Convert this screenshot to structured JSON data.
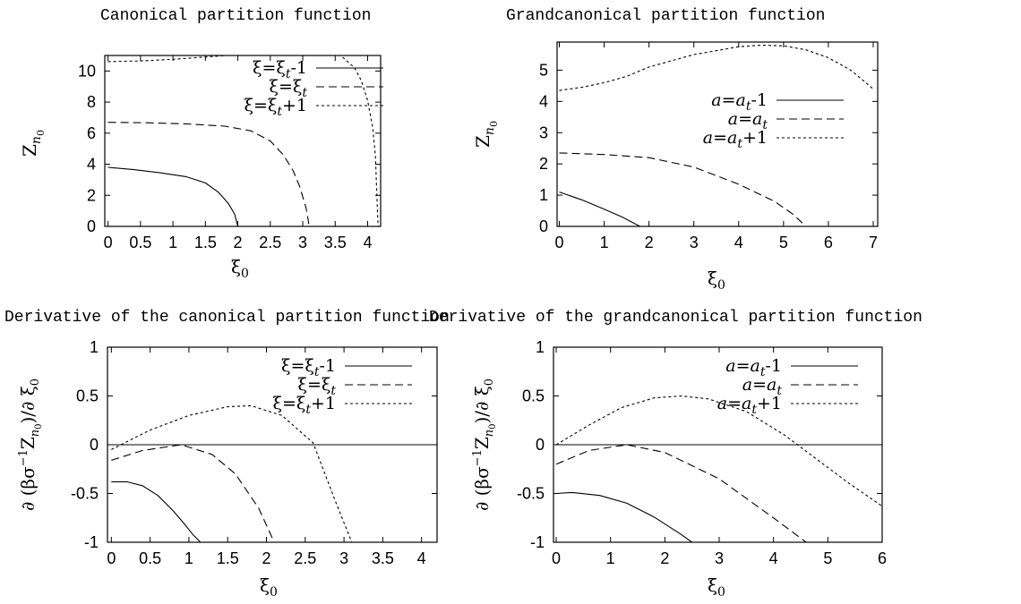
{
  "chart_data": [
    {
      "type": "line",
      "title": "Canonical partition function",
      "xlabel": "ξ0",
      "ylabel": "Zn0",
      "xlim": [
        -0.05,
        4.2
      ],
      "ylim": [
        0,
        11
      ],
      "xticks": [
        "0",
        "0.5",
        "1",
        "1.5",
        "2",
        "2.5",
        "3",
        "3.5",
        "4"
      ],
      "yticks": [
        "0",
        "2",
        "4",
        "6",
        "8",
        "10"
      ],
      "legend": "top-right",
      "series": [
        {
          "name": "ξ=ξt-1",
          "dash": "solid",
          "x": [
            0,
            0.4,
            0.8,
            1.2,
            1.5,
            1.7,
            1.85,
            1.95,
            2.0
          ],
          "y": [
            3.8,
            3.65,
            3.45,
            3.2,
            2.8,
            2.2,
            1.5,
            0.8,
            0
          ]
        },
        {
          "name": "ξ=ξt",
          "dash": "long",
          "x": [
            0,
            0.6,
            1.2,
            1.8,
            2.2,
            2.5,
            2.7,
            2.85,
            2.95,
            3.05,
            3.1
          ],
          "y": [
            6.7,
            6.67,
            6.6,
            6.45,
            6.15,
            5.5,
            4.6,
            3.6,
            2.6,
            1.2,
            0
          ]
        },
        {
          "name": "ξ=ξt+1",
          "dash": "short",
          "x": [
            0,
            0.5,
            1,
            1.5,
            2,
            2.5,
            3,
            3.4,
            3.6,
            3.8,
            3.9,
            4.0,
            4.08,
            4.12,
            4.16
          ],
          "y": [
            10.6,
            10.65,
            10.75,
            10.9,
            11.05,
            11.2,
            11.35,
            11.3,
            10.95,
            10.2,
            9.4,
            8.1,
            6.3,
            4.5,
            0
          ]
        }
      ]
    },
    {
      "type": "line",
      "title": "Grandcanonical partition function",
      "xlabel": "ξ0",
      "ylabel": "Zn0",
      "xlim": [
        -0.05,
        7.1
      ],
      "ylim": [
        0,
        5.9
      ],
      "xticks": [
        "0",
        "1",
        "2",
        "3",
        "4",
        "5",
        "6",
        "7"
      ],
      "yticks": [
        "0",
        "1",
        "2",
        "3",
        "4",
        "5"
      ],
      "legend": "right",
      "series": [
        {
          "name": "a=at-1",
          "dash": "solid",
          "x": [
            0,
            0.5,
            1,
            1.4,
            1.8
          ],
          "y": [
            1.1,
            0.85,
            0.55,
            0.3,
            0
          ]
        },
        {
          "name": "a=at",
          "dash": "long",
          "x": [
            0,
            1,
            2,
            3,
            4,
            4.8,
            5.2,
            5.5
          ],
          "y": [
            2.35,
            2.3,
            2.2,
            1.9,
            1.35,
            0.8,
            0.4,
            0
          ]
        },
        {
          "name": "a=at+1",
          "dash": "short",
          "x": [
            0,
            0.5,
            1,
            1.5,
            2,
            3,
            4,
            4.5,
            5,
            5.5,
            6,
            6.5,
            7
          ],
          "y": [
            4.35,
            4.45,
            4.6,
            4.8,
            5.1,
            5.5,
            5.75,
            5.8,
            5.78,
            5.65,
            5.4,
            5.0,
            4.4
          ]
        }
      ]
    },
    {
      "type": "line",
      "title": "Derivative of the canonical partition function",
      "xlabel": "ξ0",
      "ylabel": "∂ (βσ−1Zn0)/∂ ξ0",
      "xlim": [
        -0.05,
        4.2
      ],
      "ylim": [
        -1,
        1
      ],
      "xticks": [
        "0",
        "0.5",
        "1",
        "1.5",
        "2",
        "2.5",
        "3",
        "3.5",
        "4"
      ],
      "yticks": [
        "-1",
        "-0.5",
        "0",
        "0.5",
        "1"
      ],
      "legend": "top-right",
      "series": [
        {
          "name": "ξ=ξt-1",
          "dash": "solid",
          "x": [
            0,
            0.2,
            0.4,
            0.6,
            0.8,
            0.95,
            1.05,
            1.15
          ],
          "y": [
            -0.38,
            -0.38,
            -0.42,
            -0.52,
            -0.68,
            -0.82,
            -0.92,
            -1.0
          ]
        },
        {
          "name": "ξ=ξt",
          "dash": "long",
          "x": [
            0,
            0.4,
            0.9,
            1.3,
            1.6,
            1.9,
            2.1
          ],
          "y": [
            -0.16,
            -0.06,
            0,
            -0.1,
            -0.3,
            -0.65,
            -1.0
          ]
        },
        {
          "name": "ξ=ξt+1",
          "dash": "short",
          "x": [
            0,
            0.5,
            1.0,
            1.5,
            1.8,
            2.2,
            2.6,
            2.9,
            3.1
          ],
          "y": [
            -0.05,
            0.15,
            0.3,
            0.39,
            0.4,
            0.3,
            0.02,
            -0.6,
            -1.0
          ]
        },
        {
          "name": "",
          "dash": "solid",
          "x": [
            -0.05,
            4.2
          ],
          "y": [
            0,
            0
          ]
        }
      ]
    },
    {
      "type": "line",
      "title": "Derivative of the grandcanonical partition function",
      "xlabel": "ξ0",
      "ylabel": "∂ (βσ−1Zn0)/∂ ξ0",
      "xlim": [
        -0.05,
        6.0
      ],
      "ylim": [
        -1,
        1
      ],
      "xticks": [
        "0",
        "1",
        "2",
        "3",
        "4",
        "5",
        "6"
      ],
      "yticks": [
        "-1",
        "-0.5",
        "0",
        "0.5",
        "1"
      ],
      "legend": "top-right",
      "series": [
        {
          "name": "a=at-1",
          "dash": "solid",
          "x": [
            0,
            0.3,
            0.8,
            1.3,
            1.8,
            2.3,
            2.5
          ],
          "y": [
            -0.5,
            -0.49,
            -0.52,
            -0.6,
            -0.74,
            -0.92,
            -1.0
          ]
        },
        {
          "name": "a=at",
          "dash": "long",
          "x": [
            0,
            0.6,
            1.3,
            2,
            3,
            4,
            4.6
          ],
          "y": [
            -0.2,
            -0.06,
            0,
            -0.08,
            -0.35,
            -0.75,
            -1.0
          ]
        },
        {
          "name": "a=at+1",
          "dash": "short",
          "x": [
            0,
            0.6,
            1.2,
            1.8,
            2.3,
            2.8,
            3.5,
            4.2,
            4.8,
            5.4,
            6.0
          ],
          "y": [
            0,
            0.2,
            0.38,
            0.48,
            0.5,
            0.47,
            0.34,
            0.1,
            -0.15,
            -0.4,
            -0.63
          ]
        },
        {
          "name": "",
          "dash": "solid",
          "x": [
            -0.05,
            6.0
          ],
          "y": [
            0,
            0
          ]
        }
      ]
    }
  ]
}
